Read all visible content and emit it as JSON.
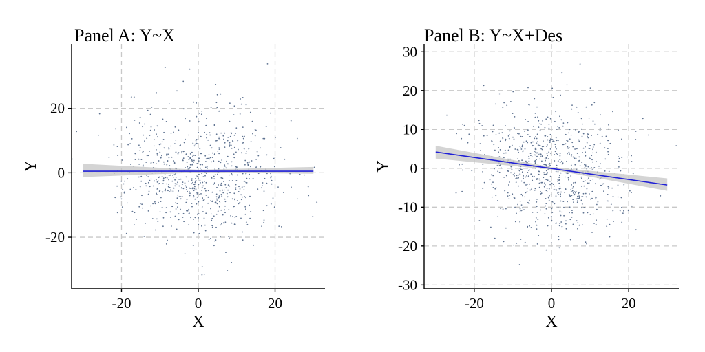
{
  "colors": {
    "point": "#5f7391",
    "fit_line": "#1f1fd6",
    "ribbon": "#c6c6c6",
    "grid": "#c8c8c8"
  },
  "chart_data": [
    {
      "type": "scatter",
      "title": "Panel A: Y~X",
      "xlabel": "X",
      "ylabel": "Y",
      "xlim": [
        -33,
        33
      ],
      "ylim": [
        -36,
        40
      ],
      "x_ticks": [
        -20,
        0,
        20
      ],
      "x_tick_labels": [
        "-20",
        "0",
        "20"
      ],
      "y_ticks": [
        -20,
        0,
        20
      ],
      "y_tick_labels": [
        "-20",
        "0",
        "20"
      ],
      "grid": true,
      "legend": "none",
      "point_count": 800,
      "x_sd": 10,
      "y_sd": 10,
      "seed": 7,
      "fit_line": {
        "x": [
          -30,
          30
        ],
        "y": [
          0.5,
          0.5
        ]
      },
      "confidence_band": {
        "x": [
          -30,
          0,
          30
        ],
        "lower": [
          -1.3,
          0.05,
          -0.3
        ],
        "upper": [
          2.8,
          0.95,
          1.8
        ]
      }
    },
    {
      "type": "scatter",
      "title": "Panel B: Y~X+Des",
      "xlabel": "X",
      "ylabel": "Y",
      "xlim": [
        -33,
        33
      ],
      "ylim": [
        -31,
        32
      ],
      "x_ticks": [
        -20,
        0,
        20
      ],
      "x_tick_labels": [
        "-20",
        "0",
        "20"
      ],
      "y_ticks": [
        -30,
        -20,
        -10,
        0,
        10,
        20,
        30
      ],
      "y_tick_labels": [
        "-30",
        "-20",
        "-10",
        "0",
        "10",
        "20",
        "30"
      ],
      "grid": true,
      "legend": "none",
      "point_count": 800,
      "x_sd": 10,
      "y_sd": 8.5,
      "slope": -0.14,
      "seed": 19,
      "fit_line": {
        "x": [
          -30,
          30
        ],
        "y": [
          4.2,
          -4.3
        ]
      },
      "confidence_band": {
        "x": [
          -30,
          0,
          30
        ],
        "lower": [
          2.5,
          -0.35,
          -5.8
        ],
        "upper": [
          5.8,
          0.3,
          -2.6
        ]
      }
    }
  ]
}
